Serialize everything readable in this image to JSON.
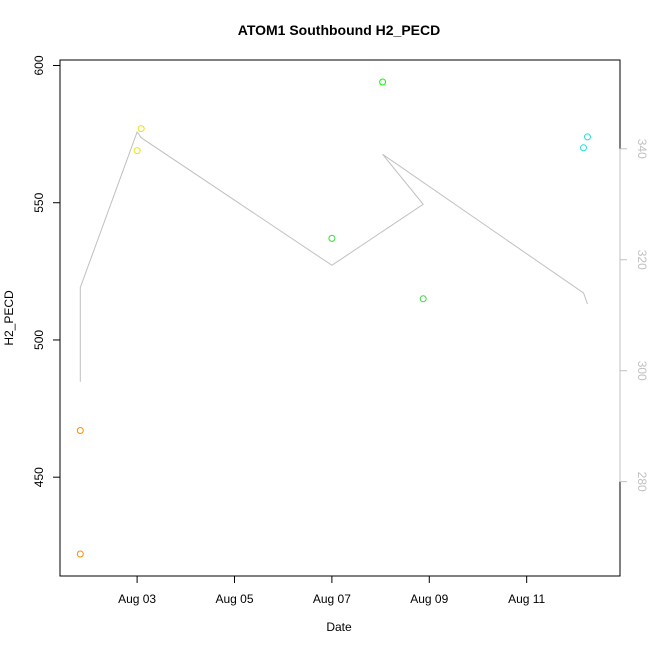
{
  "chart_data": {
    "type": "scatter",
    "title": "ATOM1 Southbound H2_PECD",
    "xlabel": "Date",
    "ylabel": "H2_PECD",
    "x_axis": {
      "range": [
        "2023-08-01T10:00",
        "2023-08-12T22:00"
      ],
      "ticks": [
        {
          "value": "2023-08-03",
          "label": "Aug 03"
        },
        {
          "value": "2023-08-05",
          "label": "Aug 05"
        },
        {
          "value": "2023-08-07",
          "label": "Aug 07"
        },
        {
          "value": "2023-08-09",
          "label": "Aug 09"
        },
        {
          "value": "2023-08-11",
          "label": "Aug 11"
        }
      ]
    },
    "y_axis_left": {
      "range": [
        414,
        602
      ],
      "ticks": [
        450,
        500,
        550,
        600
      ]
    },
    "y_axis_right": {
      "range": [
        263,
        356
      ],
      "ticks": [
        280,
        300,
        320,
        340
      ],
      "color": "#c0c0c0"
    },
    "points": [
      {
        "x": "2023-08-01T20:00",
        "y": 467,
        "color": "#ff8c00"
      },
      {
        "x": "2023-08-01T20:00",
        "y": 422,
        "color": "#ff8c00"
      },
      {
        "x": "2023-08-03T00:00",
        "y": 569,
        "color": "#e8e800"
      },
      {
        "x": "2023-08-03T02:00",
        "y": 577,
        "color": "#e8e800"
      },
      {
        "x": "2023-08-07T00:00",
        "y": 537,
        "color": "#33dd33"
      },
      {
        "x": "2023-08-08T01:00",
        "y": 594,
        "color": "#00ff00"
      },
      {
        "x": "2023-08-08T21:00",
        "y": 515,
        "color": "#33dd33"
      },
      {
        "x": "2023-08-12T04:00",
        "y": 570,
        "color": "#20e0d0"
      },
      {
        "x": "2023-08-12T06:00",
        "y": 574,
        "color": "#20e0d0"
      }
    ],
    "line_series": {
      "axis": "right",
      "color": "#c0c0c0",
      "points": [
        {
          "x": "2023-08-01T20:00",
          "y": 298
        },
        {
          "x": "2023-08-01T20:00",
          "y": 315
        },
        {
          "x": "2023-08-03T00:00",
          "y": 343
        },
        {
          "x": "2023-08-03T02:00",
          "y": 342
        },
        {
          "x": "2023-08-07T00:00",
          "y": 319
        },
        {
          "x": "2023-08-08T21:00",
          "y": 330
        },
        {
          "x": "2023-08-08T01:00",
          "y": 339
        },
        {
          "x": "2023-08-12T04:00",
          "y": 314
        },
        {
          "x": "2023-08-12T06:00",
          "y": 312
        }
      ]
    },
    "grid": false,
    "legend": "none"
  }
}
